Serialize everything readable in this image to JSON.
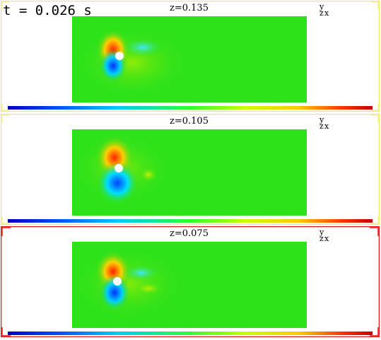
{
  "time_label": "t = 0.026 s",
  "axes_indicator": {
    "y": "y",
    "x": "x",
    "z": "z"
  },
  "panels": [
    {
      "z_label": "z=0.135",
      "frame_color": "#f0ec6a",
      "selected": false
    },
    {
      "z_label": "z=0.105",
      "frame_color": "#f0ec6a",
      "selected": false
    },
    {
      "z_label": "z=0.075",
      "frame_color": "#e01818",
      "selected": true
    }
  ],
  "colors": {
    "field_background": "#2ee21a",
    "colormap": [
      "#0000c8",
      "#0050ff",
      "#00c8ff",
      "#30ff30",
      "#c8ff00",
      "#ffc800",
      "#ff3000",
      "#c80000"
    ]
  }
}
